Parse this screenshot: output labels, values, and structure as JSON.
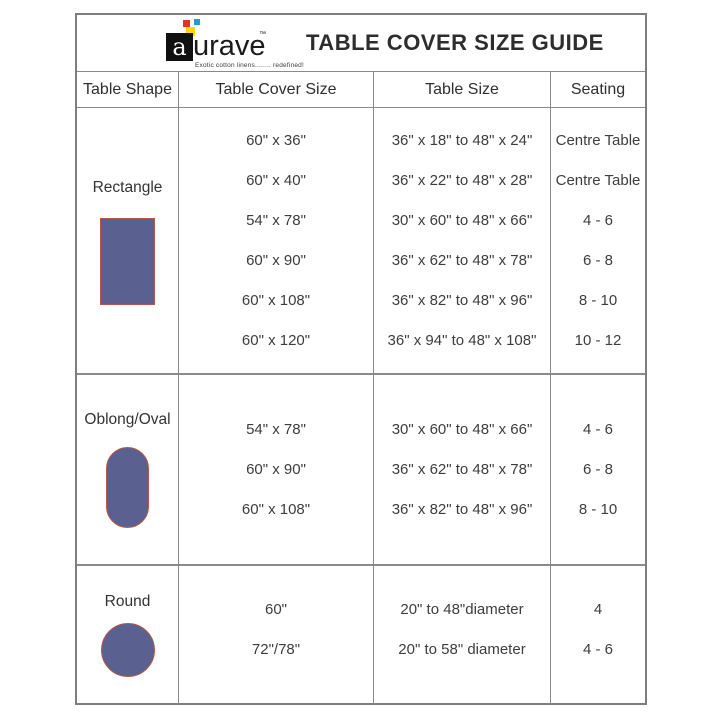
{
  "brand": {
    "logo_letter": "a",
    "logo_name": "urave",
    "trademark": "™",
    "tagline": "Exotic cotton linens........ redefined!",
    "colors": {
      "red": "#e53228",
      "blue": "#1f9cdb",
      "yellow": "#ffd800",
      "black": "#101010"
    }
  },
  "title": "TABLE COVER SIZE GUIDE",
  "columns": [
    "Table Shape",
    "Table Cover Size",
    "Table Size",
    "Seating"
  ],
  "shape_color": "#5a6190",
  "shape_border_color": "#b8564b",
  "sections": [
    {
      "shape_label": "Rectangle",
      "rows": [
        {
          "cover": "60\" x 36\"",
          "size": "36\" x 18\" to 48\" x 24\"",
          "seating": "Centre Table"
        },
        {
          "cover": "60\" x 40\"",
          "size": "36\" x 22\" to 48\" x 28\"",
          "seating": "Centre Table"
        },
        {
          "cover": "54\" x 78\"",
          "size": "30\" x 60\" to 48\" x 66\"",
          "seating": "4 - 6"
        },
        {
          "cover": "60\" x 90\"",
          "size": "36\" x 62\" to 48\" x 78\"",
          "seating": "6 - 8"
        },
        {
          "cover": "60\" x 108\"",
          "size": "36\" x 82\" to 48\" x 96\"",
          "seating": "8 - 10"
        },
        {
          "cover": "60\" x 120\"",
          "size": "36\" x 94\" to 48\" x 108\"",
          "seating": "10 - 12"
        }
      ]
    },
    {
      "shape_label": "Oblong/Oval",
      "rows": [
        {
          "cover": "54\" x 78\"",
          "size": "30\" x 60\" to 48\" x 66\"",
          "seating": "4 - 6"
        },
        {
          "cover": "60\" x 90\"",
          "size": "36\" x 62\" to 48\" x 78\"",
          "seating": "6 - 8"
        },
        {
          "cover": "60\" x 108\"",
          "size": "36\" x 82\" to 48\" x 96\"",
          "seating": "8 - 10"
        }
      ]
    },
    {
      "shape_label": "Round",
      "rows": [
        {
          "cover": "60\"",
          "size": "20\" to 48\"diameter",
          "seating": "4"
        },
        {
          "cover": "72\"/78\"",
          "size": "20\" to 58\" diameter",
          "seating": "4 - 6"
        }
      ]
    }
  ]
}
